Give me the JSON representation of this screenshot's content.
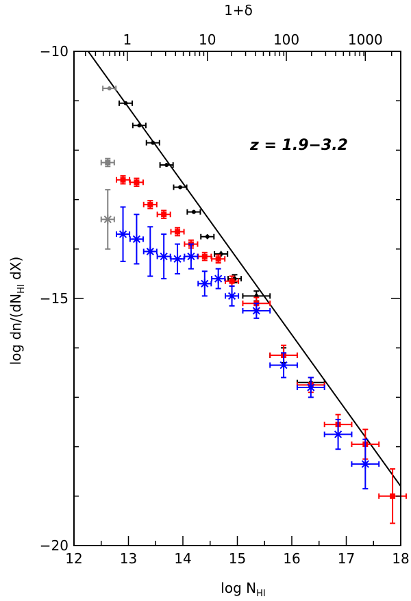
{
  "chart_data": {
    "type": "scatter",
    "title": "",
    "xlabel": "log N",
    "xlabel_sub": "HI",
    "ylabel": "log dn/(dN",
    "ylabel_sub": "HI",
    "ylabel_tail": " dX)",
    "top_xlabel": "1+δ",
    "annotation": "z = 1.9−3.2",
    "xlim": [
      12,
      18
    ],
    "ylim": [
      -20,
      -10
    ],
    "x_ticks": [
      12,
      13,
      14,
      15,
      16,
      17,
      18
    ],
    "x_tick_labels": [
      "12",
      "13",
      "14",
      "15",
      "16",
      "17",
      "18"
    ],
    "y_ticks": [
      -20,
      -15,
      -10
    ],
    "y_tick_labels": [
      "−20",
      "−15",
      "−10"
    ],
    "top_ticks": [
      {
        "label": "1",
        "x": 12.98
      },
      {
        "label": "10",
        "x": 14.45
      },
      {
        "label": "100",
        "x": 15.9
      },
      {
        "label": "1000",
        "x": 17.35
      }
    ],
    "power_law": {
      "x": [
        12.0,
        18.0
      ],
      "y": [
        -9.6,
        -18.8
      ]
    },
    "series": [
      {
        "name": "gray",
        "color": "#808080",
        "marker": "circle",
        "points": [
          {
            "x": 12.65,
            "y": -10.75,
            "xerr": 0.12,
            "yerr": 0.04
          }
        ]
      },
      {
        "name": "gray-square",
        "color": "#808080",
        "marker": "square",
        "points": [
          {
            "x": 12.62,
            "y": -12.25,
            "xerr": 0.12,
            "yerr": 0.08
          }
        ]
      },
      {
        "name": "gray-star",
        "color": "#808080",
        "marker": "star",
        "points": [
          {
            "x": 12.62,
            "y": -13.4,
            "xerr": 0.12,
            "yerr": 0.6
          }
        ]
      },
      {
        "name": "black",
        "color": "#000000",
        "marker": "circle",
        "points": [
          {
            "x": 12.95,
            "y": -11.05,
            "xerr": 0.12,
            "yerr": 0.03
          },
          {
            "x": 13.2,
            "y": -11.5,
            "xerr": 0.12,
            "yerr": 0.03
          },
          {
            "x": 13.45,
            "y": -11.85,
            "xerr": 0.12,
            "yerr": 0.03
          },
          {
            "x": 13.7,
            "y": -12.3,
            "xerr": 0.12,
            "yerr": 0.03
          },
          {
            "x": 13.95,
            "y": -12.75,
            "xerr": 0.12,
            "yerr": 0.03
          },
          {
            "x": 14.2,
            "y": -13.25,
            "xerr": 0.12,
            "yerr": 0.04
          },
          {
            "x": 14.45,
            "y": -13.75,
            "xerr": 0.12,
            "yerr": 0.05
          },
          {
            "x": 14.7,
            "y": -14.1,
            "xerr": 0.12,
            "yerr": 0.06
          },
          {
            "x": 14.95,
            "y": -14.6,
            "xerr": 0.12,
            "yerr": 0.08
          },
          {
            "x": 15.35,
            "y": -14.95,
            "xerr": 0.25,
            "yerr": 0.1
          },
          {
            "x": 15.85,
            "y": -16.15,
            "xerr": 0.25,
            "yerr": 0.15
          },
          {
            "x": 16.35,
            "y": -16.7,
            "xerr": 0.25,
            "yerr": 0.1
          }
        ]
      },
      {
        "name": "red",
        "color": "#ff0000",
        "marker": "square",
        "points": [
          {
            "x": 12.9,
            "y": -12.6,
            "xerr": 0.12,
            "yerr": 0.08
          },
          {
            "x": 13.15,
            "y": -12.65,
            "xerr": 0.12,
            "yerr": 0.08
          },
          {
            "x": 13.4,
            "y": -13.1,
            "xerr": 0.12,
            "yerr": 0.08
          },
          {
            "x": 13.65,
            "y": -13.3,
            "xerr": 0.12,
            "yerr": 0.08
          },
          {
            "x": 13.9,
            "y": -13.65,
            "xerr": 0.12,
            "yerr": 0.08
          },
          {
            "x": 14.15,
            "y": -13.9,
            "xerr": 0.12,
            "yerr": 0.08
          },
          {
            "x": 14.4,
            "y": -14.15,
            "xerr": 0.12,
            "yerr": 0.08
          },
          {
            "x": 14.65,
            "y": -14.2,
            "xerr": 0.12,
            "yerr": 0.08
          },
          {
            "x": 14.9,
            "y": -14.65,
            "xerr": 0.12,
            "yerr": 0.1
          },
          {
            "x": 15.35,
            "y": -15.1,
            "xerr": 0.25,
            "yerr": 0.12
          },
          {
            "x": 15.85,
            "y": -16.15,
            "xerr": 0.25,
            "yerr": 0.2
          },
          {
            "x": 16.35,
            "y": -16.75,
            "xerr": 0.25,
            "yerr": 0.15
          },
          {
            "x": 16.85,
            "y": -17.55,
            "xerr": 0.25,
            "yerr": 0.2
          },
          {
            "x": 17.35,
            "y": -17.95,
            "xerr": 0.25,
            "yerr": 0.3
          },
          {
            "x": 17.85,
            "y": -19.0,
            "xerr": 0.25,
            "yerr": 0.55
          }
        ]
      },
      {
        "name": "blue",
        "color": "#0000ff",
        "marker": "star",
        "points": [
          {
            "x": 12.9,
            "y": -13.7,
            "xerr": 0.12,
            "yerr": 0.55
          },
          {
            "x": 13.15,
            "y": -13.8,
            "xerr": 0.12,
            "yerr": 0.5
          },
          {
            "x": 13.4,
            "y": -14.05,
            "xerr": 0.12,
            "yerr": 0.5
          },
          {
            "x": 13.65,
            "y": -14.15,
            "xerr": 0.12,
            "yerr": 0.45
          },
          {
            "x": 13.9,
            "y": -14.2,
            "xerr": 0.12,
            "yerr": 0.3
          },
          {
            "x": 14.15,
            "y": -14.15,
            "xerr": 0.12,
            "yerr": 0.25
          },
          {
            "x": 14.4,
            "y": -14.7,
            "xerr": 0.12,
            "yerr": 0.25
          },
          {
            "x": 14.65,
            "y": -14.6,
            "xerr": 0.12,
            "yerr": 0.2
          },
          {
            "x": 14.9,
            "y": -14.95,
            "xerr": 0.12,
            "yerr": 0.2
          },
          {
            "x": 15.35,
            "y": -15.25,
            "xerr": 0.25,
            "yerr": 0.15
          },
          {
            "x": 15.85,
            "y": -16.35,
            "xerr": 0.25,
            "yerr": 0.25
          },
          {
            "x": 16.35,
            "y": -16.8,
            "xerr": 0.25,
            "yerr": 0.2
          },
          {
            "x": 16.85,
            "y": -17.75,
            "xerr": 0.25,
            "yerr": 0.3
          },
          {
            "x": 17.35,
            "y": -18.35,
            "xerr": 0.25,
            "yerr": 0.5
          }
        ]
      }
    ]
  }
}
